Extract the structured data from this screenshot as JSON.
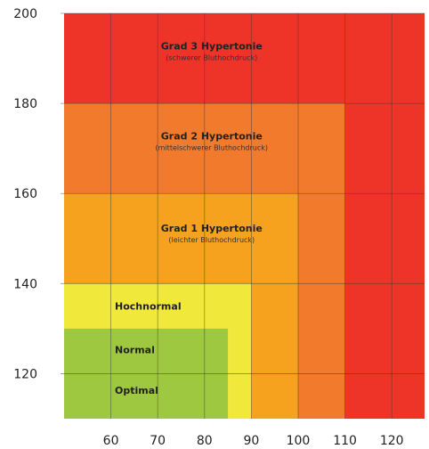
{
  "chart_data": {
    "type": "heatmap",
    "title": "",
    "xlabel": "",
    "ylabel": "",
    "xlim": [
      50,
      127
    ],
    "ylim": [
      110,
      200
    ],
    "xticks": [
      60,
      70,
      80,
      90,
      100,
      110,
      120
    ],
    "yticks": [
      120,
      140,
      160,
      180,
      200
    ],
    "grid": true,
    "zones": [
      {
        "name": "Grad 3 Hypertonie",
        "subtitle": "(schwerer Bluthochdruck)",
        "color": "#EE3328",
        "systolic_min": 180,
        "diastolic_min": 110
      },
      {
        "name": "Grad 2 Hypertonie",
        "subtitle": "(mittelschwerer Bluthochdruck)",
        "color": "#F27A2C",
        "systolic_range": [
          160,
          180
        ],
        "diastolic_range": [
          100,
          110
        ]
      },
      {
        "name": "Grad 1 Hypertonie",
        "subtitle": "(leichter Bluthochdruck)",
        "color": "#F6A21F",
        "systolic_range": [
          140,
          160
        ],
        "diastolic_range": [
          90,
          100
        ]
      },
      {
        "name": "Hochnormal",
        "subtitle": "",
        "color": "#F1E83C",
        "systolic_range": [
          130,
          140
        ],
        "diastolic_range": [
          85,
          90
        ]
      },
      {
        "name": "Normal",
        "subtitle": "",
        "color": "#9DC83F",
        "systolic_range": [
          120,
          130
        ],
        "diastolic_range": [
          80,
          85
        ]
      },
      {
        "name": "Optimal",
        "subtitle": "",
        "color": "#9DC83F",
        "systolic_max": 120,
        "diastolic_max": 80
      }
    ]
  }
}
